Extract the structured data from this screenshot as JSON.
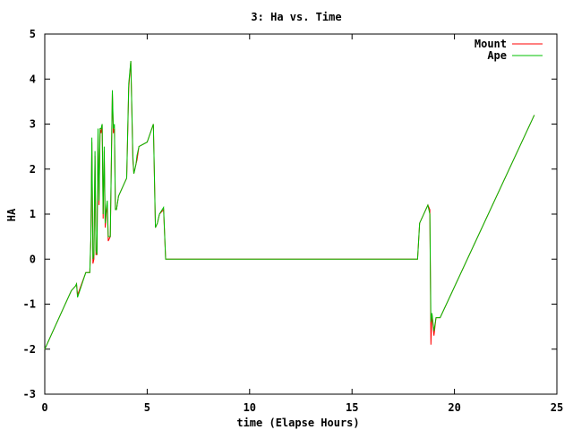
{
  "chart_data": {
    "type": "line",
    "title": "3: Ha vs. Time",
    "xlabel": "time (Elapse Hours)",
    "ylabel": "HA",
    "xlim": [
      0,
      25
    ],
    "ylim": [
      -3,
      5
    ],
    "xticks": [
      0,
      5,
      10,
      15,
      20,
      25
    ],
    "yticks": [
      -3,
      -2,
      -1,
      0,
      1,
      2,
      3,
      4,
      5
    ],
    "grid": false,
    "legend_position": "top-right",
    "series": [
      {
        "name": "Mount",
        "color": "#ff0000",
        "x": [
          0,
          1.3,
          1.5,
          1.55,
          1.6,
          2.0,
          2.2,
          2.25,
          2.3,
          2.35,
          2.4,
          2.45,
          2.5,
          2.55,
          2.6,
          2.65,
          2.7,
          2.75,
          2.8,
          2.85,
          2.9,
          2.95,
          3.0,
          3.05,
          3.1,
          3.2,
          3.3,
          3.35,
          3.4,
          3.45,
          3.5,
          3.6,
          3.8,
          4.0,
          4.1,
          4.2,
          4.3,
          4.35,
          4.4,
          4.45,
          4.5,
          4.6,
          5.0,
          5.3,
          5.4,
          5.5,
          5.6,
          5.8,
          5.9,
          18.2,
          18.3,
          18.7,
          18.8,
          18.85,
          18.9,
          19.0,
          19.1,
          19.3,
          23.9
        ],
        "y": [
          -2.0,
          -0.7,
          -0.6,
          -0.55,
          -0.8,
          -0.3,
          -0.3,
          0.4,
          2.6,
          -0.1,
          0.0,
          2.3,
          0.1,
          0.1,
          2.8,
          1.2,
          2.9,
          2.8,
          3.0,
          0.9,
          2.4,
          0.7,
          1.0,
          1.2,
          0.4,
          0.5,
          3.7,
          2.8,
          2.9,
          1.1,
          1.1,
          1.4,
          1.6,
          1.8,
          3.8,
          4.4,
          2.2,
          1.9,
          2.0,
          2.1,
          2.2,
          2.5,
          2.6,
          3.0,
          0.7,
          0.8,
          1.0,
          1.1,
          0.0,
          0.0,
          0.8,
          1.2,
          1.1,
          -1.9,
          -1.2,
          -1.7,
          -1.3,
          -1.3,
          3.2
        ]
      },
      {
        "name": "Ape",
        "color": "#00c000",
        "x": [
          0,
          1.3,
          1.5,
          1.55,
          1.6,
          2.0,
          2.2,
          2.25,
          2.3,
          2.35,
          2.4,
          2.45,
          2.5,
          2.55,
          2.6,
          2.65,
          2.7,
          2.75,
          2.8,
          2.85,
          2.9,
          2.95,
          3.0,
          3.05,
          3.1,
          3.2,
          3.3,
          3.35,
          3.4,
          3.45,
          3.5,
          3.6,
          3.8,
          4.0,
          4.1,
          4.2,
          4.3,
          4.35,
          4.4,
          4.45,
          4.5,
          4.6,
          5.0,
          5.3,
          5.4,
          5.5,
          5.6,
          5.8,
          5.9,
          18.2,
          18.3,
          18.7,
          18.8,
          18.85,
          18.9,
          19.0,
          19.1,
          19.3,
          23.9
        ],
        "y": [
          -2.0,
          -0.7,
          -0.6,
          -0.55,
          -0.85,
          -0.3,
          -0.3,
          0.5,
          2.7,
          0.0,
          0.1,
          2.4,
          0.2,
          0.1,
          2.9,
          1.3,
          2.9,
          2.9,
          3.0,
          1.0,
          2.5,
          0.8,
          1.1,
          1.3,
          0.5,
          0.5,
          3.75,
          2.9,
          3.0,
          1.1,
          1.1,
          1.4,
          1.6,
          1.8,
          3.9,
          4.4,
          2.3,
          1.9,
          2.0,
          2.1,
          2.3,
          2.5,
          2.6,
          3.0,
          0.7,
          0.8,
          1.0,
          1.15,
          0.0,
          0.0,
          0.8,
          1.2,
          1.0,
          -1.4,
          -1.2,
          -1.6,
          -1.3,
          -1.3,
          3.2
        ]
      }
    ]
  }
}
